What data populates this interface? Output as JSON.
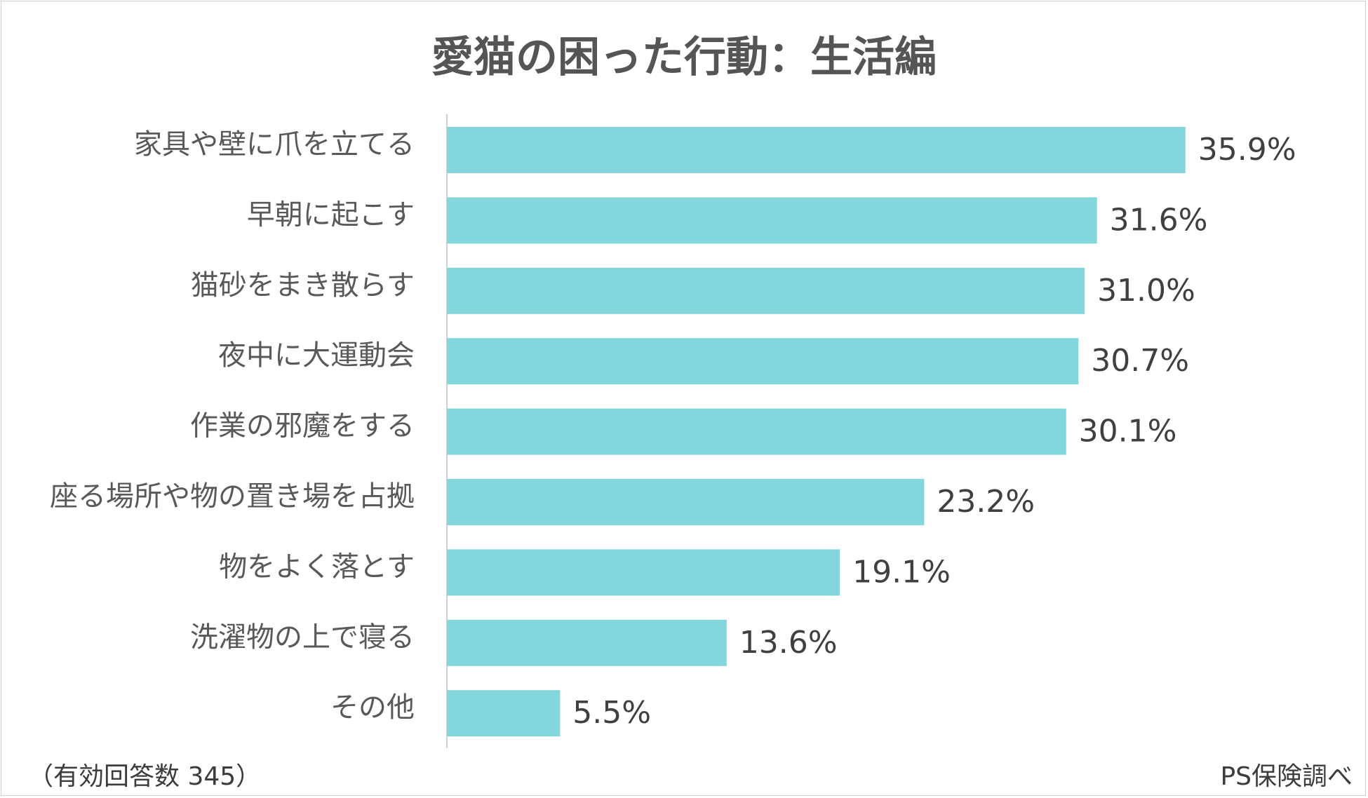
{
  "title": "愛猫の困った行動：生活編",
  "chart_data": {
    "type": "bar",
    "orientation": "horizontal",
    "title": "愛猫の困った行動：生活編",
    "categories": [
      "家具や壁に爪を立てる",
      "早朝に起こす",
      "猫砂をまき散らす",
      "夜中に大運動会",
      "作業の邪魔をする",
      "座る場所や物の置き場を占拠",
      "物をよく落とす",
      "洗濯物の上で寝る",
      "その他"
    ],
    "values": [
      35.9,
      31.6,
      31.0,
      30.7,
      30.1,
      23.2,
      19.1,
      13.6,
      5.5
    ],
    "value_labels": [
      "35.9%",
      "31.6%",
      "31.0%",
      "30.7%",
      "30.1%",
      "23.2%",
      "19.1%",
      "13.6%",
      "5.5%"
    ],
    "xlim": [
      0,
      40
    ],
    "grid": false,
    "bar_color": "#82d6dc",
    "axis_color": "#d0d0d0"
  },
  "footnote_left": "（有効回答数 345）",
  "footnote_right": "PS保険調べ"
}
